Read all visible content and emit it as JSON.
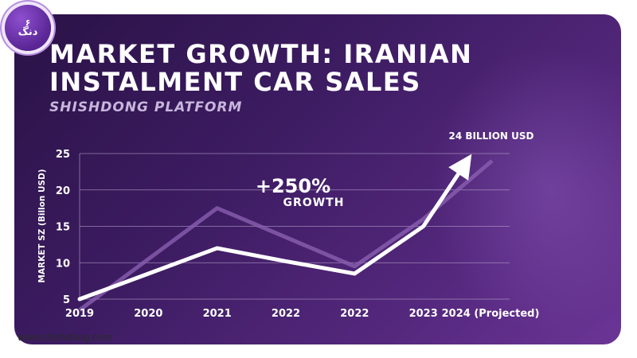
{
  "badge": {
    "top": "۶",
    "bottom": "دنگ"
  },
  "footer": {
    "url": "www.shishdong.com"
  },
  "colors": {
    "background": "#3d1c62",
    "line": "#ffffff",
    "shadow_line": "#8a5fb0",
    "grid": "#b9a6cf"
  },
  "chart_data": {
    "type": "line",
    "title_lines": [
      "MARKET GROWTH: IRANIAN",
      "INSTALMENT CAR SALES"
    ],
    "subtitle": "SHISHDONG PLATFORM",
    "ylabel": "MARKET SZ (Billon USD)",
    "xlabel": "",
    "categories": [
      "2019",
      "2020",
      "2021",
      "2022",
      "2022",
      "2023",
      "2024 (Projected)"
    ],
    "yticks": [
      "5",
      "10",
      "15",
      "20",
      "25"
    ],
    "ylim": [
      5,
      25
    ],
    "grid": true,
    "series": [
      {
        "values": [
          5,
          8.5,
          12,
          10.2,
          8.5,
          15,
          24
        ]
      }
    ],
    "shadow_values": [
      3.5,
      10.5,
      17.5,
      13.5,
      9.5,
      16,
      24
    ],
    "annotations": {
      "growth_value": "+250%",
      "growth_label": "GROWTH",
      "end_label": "24 BILLION USD"
    }
  }
}
